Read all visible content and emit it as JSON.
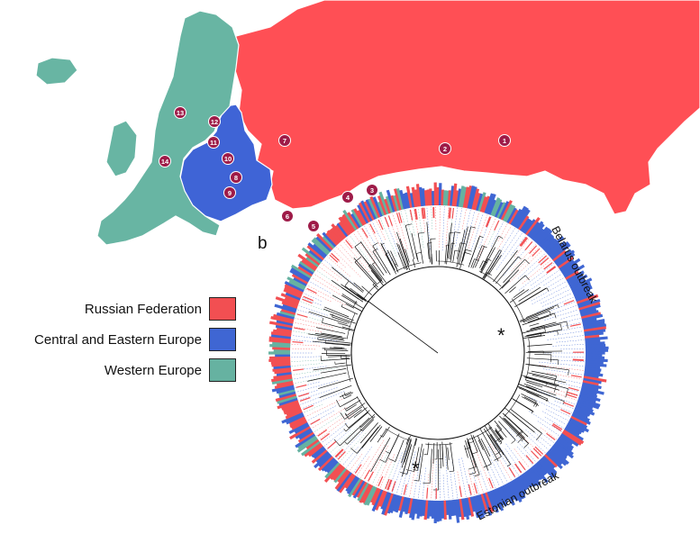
{
  "panel_letter": "b",
  "legend": [
    {
      "label": "Russian Federation",
      "color": "#f24f52"
    },
    {
      "label": "Central and Eastern Europe",
      "color": "#3f66d3"
    },
    {
      "label": "Western Europe",
      "color": "#66b2a1"
    }
  ],
  "map": {
    "region_colors": {
      "russia": "#ff4f55",
      "central_eastern": "#3f64d6",
      "western": "#68b5a3"
    },
    "markers": [
      "1",
      "2",
      "3",
      "4",
      "5",
      "6",
      "7",
      "8",
      "9",
      "10",
      "11",
      "12",
      "13",
      "14"
    ],
    "marker_color": "#9e1b48"
  },
  "tree": {
    "outbreak_labels": [
      "Belarus outbreak",
      "Estonian outbreak"
    ],
    "asterisk": "*",
    "ring_colors": [
      "#f24f52",
      "#3f66d3",
      "#66b2a1"
    ]
  }
}
